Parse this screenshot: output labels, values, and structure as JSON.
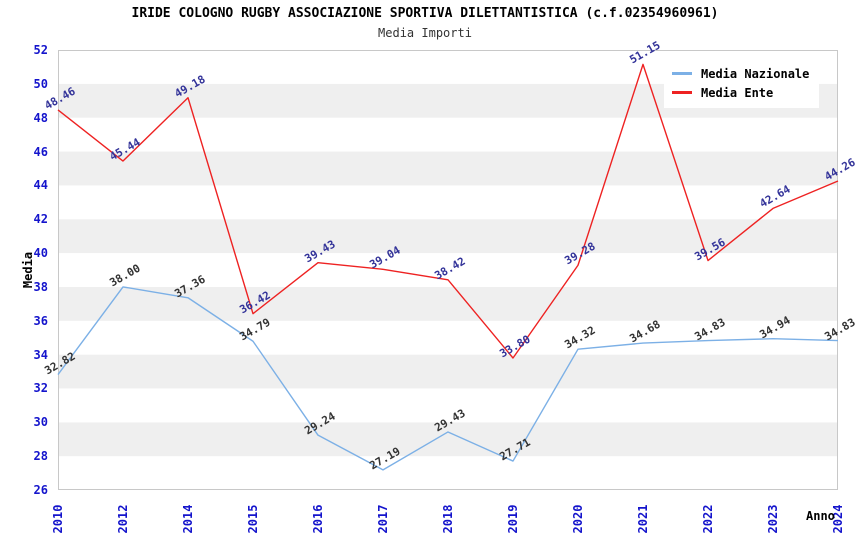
{
  "chart_data": {
    "type": "line",
    "title": "IRIDE COLOGNO RUGBY ASSOCIAZIONE SPORTIVA DILETTANTISTICA (c.f.02354960961)",
    "subtitle": "Media Importi",
    "xlabel": "Anno",
    "ylabel": "Media",
    "categories": [
      "2010",
      "2012",
      "2014",
      "2015",
      "2016",
      "2017",
      "2018",
      "2019",
      "2020",
      "2021",
      "2022",
      "2023",
      "2024"
    ],
    "series": [
      {
        "name": "Media Nazionale",
        "color": "#7CB0E6",
        "label_color": "#333333",
        "values": [
          32.82,
          38.0,
          37.36,
          34.79,
          29.24,
          27.19,
          29.43,
          27.71,
          34.32,
          34.68,
          34.83,
          34.94,
          34.83
        ]
      },
      {
        "name": "Media Ente",
        "color": "#EE2222",
        "label_color": "#333399",
        "values": [
          48.46,
          45.44,
          49.18,
          36.42,
          39.43,
          39.04,
          38.42,
          33.8,
          39.28,
          51.15,
          39.56,
          42.64,
          44.26
        ]
      }
    ],
    "ylim": [
      26,
      52
    ],
    "ytick_step": 2,
    "grid": "horizontal-bands",
    "legend_position": "top-right",
    "band_colors": [
      "#FFFFFF",
      "#EFEFEF"
    ],
    "plot_border_color": "#C8C8C8",
    "tick_color": "#1414CC",
    "value_label_decimals": 2
  }
}
